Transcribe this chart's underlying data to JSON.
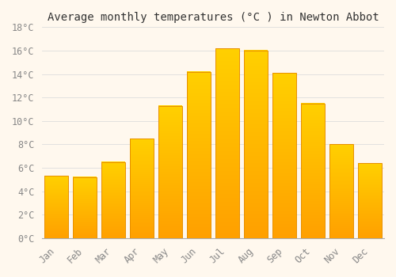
{
  "title": "Average monthly temperatures (°C ) in Newton Abbot",
  "months": [
    "Jan",
    "Feb",
    "Mar",
    "Apr",
    "May",
    "Jun",
    "Jul",
    "Aug",
    "Sep",
    "Oct",
    "Nov",
    "Dec"
  ],
  "values": [
    5.3,
    5.2,
    6.5,
    8.5,
    11.3,
    14.2,
    16.2,
    16.0,
    14.1,
    11.5,
    8.0,
    6.4
  ],
  "bar_color_bottom": "#FFD000",
  "bar_color_top": "#FFA000",
  "bar_edge_color": "#E89000",
  "ylim": [
    0,
    18
  ],
  "ytick_step": 2,
  "background_color": "#FFF8EE",
  "grid_color": "#DDDDDD",
  "title_fontsize": 10,
  "tick_fontsize": 8.5,
  "font_family": "monospace",
  "bar_width": 0.82
}
